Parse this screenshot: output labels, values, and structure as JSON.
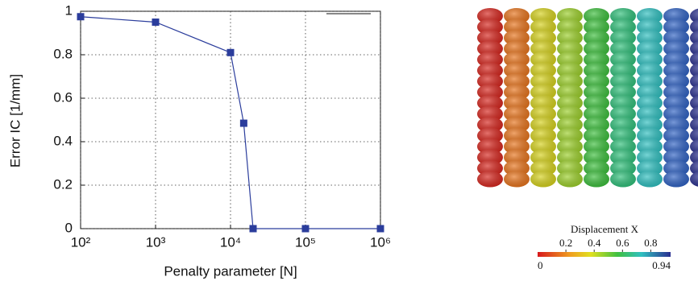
{
  "chart_data": {
    "type": "line",
    "xlabel": "Penalty parameter [N]",
    "ylabel": "Error IC [1/mm]",
    "xscale": "log",
    "x": [
      100,
      1000,
      10000,
      15000,
      20000,
      100000,
      1000000
    ],
    "series": [
      {
        "color": "#2b3d9c",
        "values": [
          0.975,
          0.95,
          0.81,
          0.485,
          0,
          0,
          0
        ]
      }
    ],
    "xlim": [
      100,
      1000000
    ],
    "ylim": [
      0,
      1
    ],
    "xticks": [
      {
        "value": 100,
        "label": "10²"
      },
      {
        "value": 1000,
        "label": "10³"
      },
      {
        "value": 10000,
        "label": "10⁴"
      },
      {
        "value": 100000,
        "label": "10⁵"
      },
      {
        "value": 1000000,
        "label": "10⁶"
      }
    ],
    "yticks": [
      0,
      0.2,
      0.4,
      0.6,
      0.8,
      1
    ],
    "grid": true
  },
  "colorbar": {
    "title": "Displacement X",
    "range": [
      0,
      0.94
    ],
    "ticks": [
      0.2,
      0.4,
      0.6,
      0.8
    ]
  }
}
